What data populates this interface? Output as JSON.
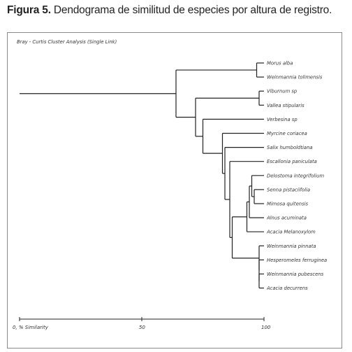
{
  "figure": {
    "caption_lead": "Figura 5.",
    "caption_text": " Dendograma de similitud de especies por altura de registro."
  },
  "chart_data": {
    "type": "dendrogram",
    "title": "Bray - Curtis Cluster Analysis (Single Link)",
    "xlabel": "% Similarity",
    "xlim": [
      0,
      100
    ],
    "ticks": [
      {
        "value": 0,
        "label": "0, % Similarity"
      },
      {
        "value": 50,
        "label": "50"
      },
      {
        "value": 100,
        "label": "100"
      }
    ],
    "leaves": [
      "Morus alba",
      "Weinmannia tolimensis",
      "Viburnum sp",
      "Vallea stipularis",
      "Verbesina sp",
      "Myrcine coriacea",
      "Salix humboldtiana",
      "Escallonia paniculata",
      "Delostoma integrifolium",
      "Senna pistaciifolia",
      "Mimosa quitensis",
      "Alnus acuminata",
      "Acacia Melanoxylom",
      "Weinmannia pinnata",
      "Hesperomeles ferruginea",
      "Weinmannia pubescens",
      "Acacia decurrens"
    ],
    "root_similarity": 0,
    "merges": [
      {
        "a": "L0",
        "b": "L1",
        "similarity": 97
      },
      {
        "a": "L9",
        "b": "L10",
        "similarity": 96
      },
      {
        "a": "L2",
        "b": "L3",
        "similarity": 98
      },
      {
        "a": "L15",
        "b": "L16",
        "similarity": 98
      },
      {
        "a": "L8",
        "b": "N1",
        "similarity": 95
      },
      {
        "a": "L14",
        "b": "N3",
        "similarity": 98
      },
      {
        "a": "N4",
        "b": "L11",
        "similarity": 94
      },
      {
        "a": "N5",
        "b": "L13",
        "similarity": 98
      },
      {
        "a": "N6",
        "b": "L12",
        "similarity": 93
      },
      {
        "a": "N7",
        "b": "N8",
        "similarity": 87
      },
      {
        "a": "N9",
        "b": "L7",
        "similarity": 86
      },
      {
        "a": "N10",
        "b": "L6",
        "similarity": 84
      },
      {
        "a": "N11",
        "b": "L5",
        "similarity": 83
      },
      {
        "a": "N12",
        "b": "L4",
        "similarity": 75
      },
      {
        "a": "N2",
        "b": "N13",
        "similarity": 72
      },
      {
        "a": "N0",
        "b": "N14",
        "similarity": 64
      }
    ]
  }
}
